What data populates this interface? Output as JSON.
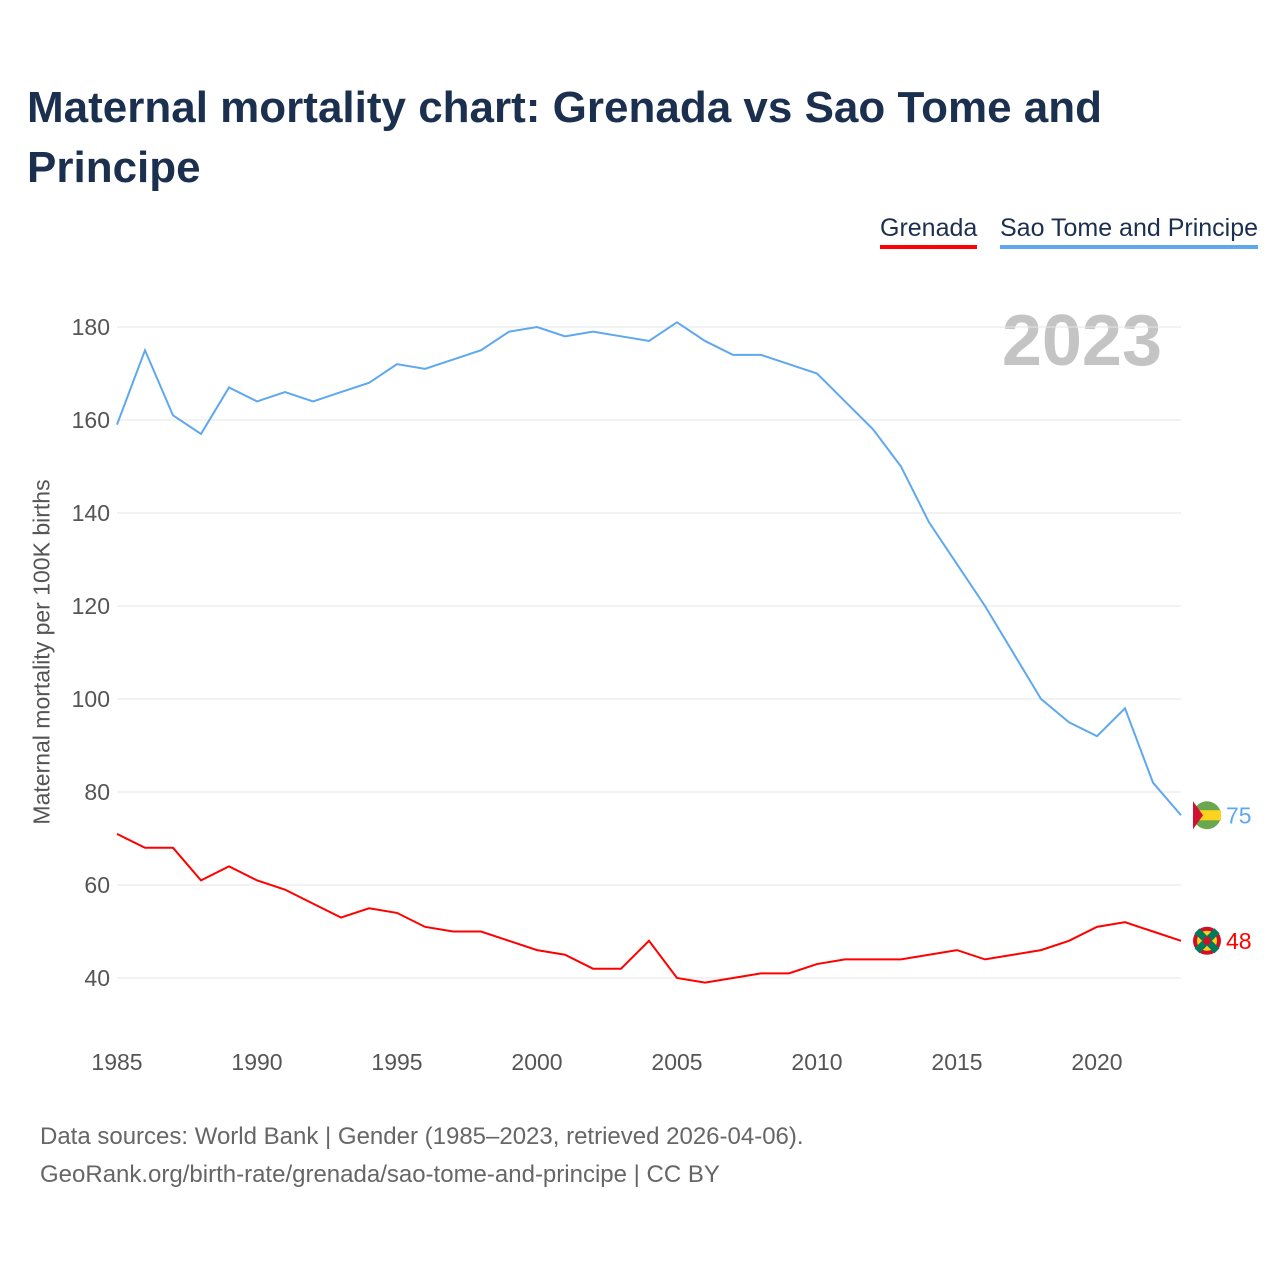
{
  "chart_data": {
    "type": "line",
    "title": "Maternal mortality chart: Grenada vs Sao Tome and Principe",
    "ylabel": "Maternal mortality per 100K births",
    "xlabel": "",
    "year_label": "2023",
    "ylim": [
      40,
      180
    ],
    "xlim": [
      1985,
      2023
    ],
    "yticks": [
      "40",
      "60",
      "80",
      "100",
      "120",
      "140",
      "160",
      "180"
    ],
    "xticks": [
      "1985",
      "1990",
      "1995",
      "2000",
      "2005",
      "2010",
      "2015",
      "2020"
    ],
    "grid": true,
    "legend_placement": "top-right",
    "x": [
      1985,
      1986,
      1987,
      1988,
      1989,
      1990,
      1991,
      1992,
      1993,
      1994,
      1995,
      1996,
      1997,
      1998,
      1999,
      2000,
      2001,
      2002,
      2003,
      2004,
      2005,
      2006,
      2007,
      2008,
      2009,
      2010,
      2011,
      2012,
      2013,
      2014,
      2015,
      2016,
      2017,
      2018,
      2019,
      2020,
      2021,
      2022,
      2023
    ],
    "series": [
      {
        "name": "Grenada",
        "color": "#ff0000",
        "end_label": "48",
        "values": [
          71,
          68,
          68,
          61,
          64,
          61,
          59,
          56,
          53,
          55,
          54,
          51,
          50,
          50,
          48,
          46,
          45,
          42,
          42,
          48,
          40,
          39,
          40,
          41,
          41,
          43,
          44,
          44,
          44,
          45,
          46,
          44,
          45,
          46,
          48,
          51,
          52,
          50,
          48
        ]
      },
      {
        "name": "Sao Tome and Principe",
        "color": "#5ea8ef",
        "end_label": "75",
        "values": [
          159,
          175,
          161,
          157,
          167,
          164,
          166,
          164,
          166,
          168,
          172,
          171,
          173,
          175,
          179,
          180,
          178,
          179,
          178,
          177,
          181,
          177,
          174,
          174,
          172,
          170,
          164,
          158,
          150,
          138,
          129,
          120,
          110,
          100,
          95,
          92,
          98,
          82,
          75
        ]
      }
    ]
  },
  "source": {
    "line1": "Data sources: World Bank | Gender (1985–2023, retrieved 2026-04-06).",
    "line2": "GeoRank.org/birth-rate/grenada/sao-tome-and-principe | CC BY"
  }
}
